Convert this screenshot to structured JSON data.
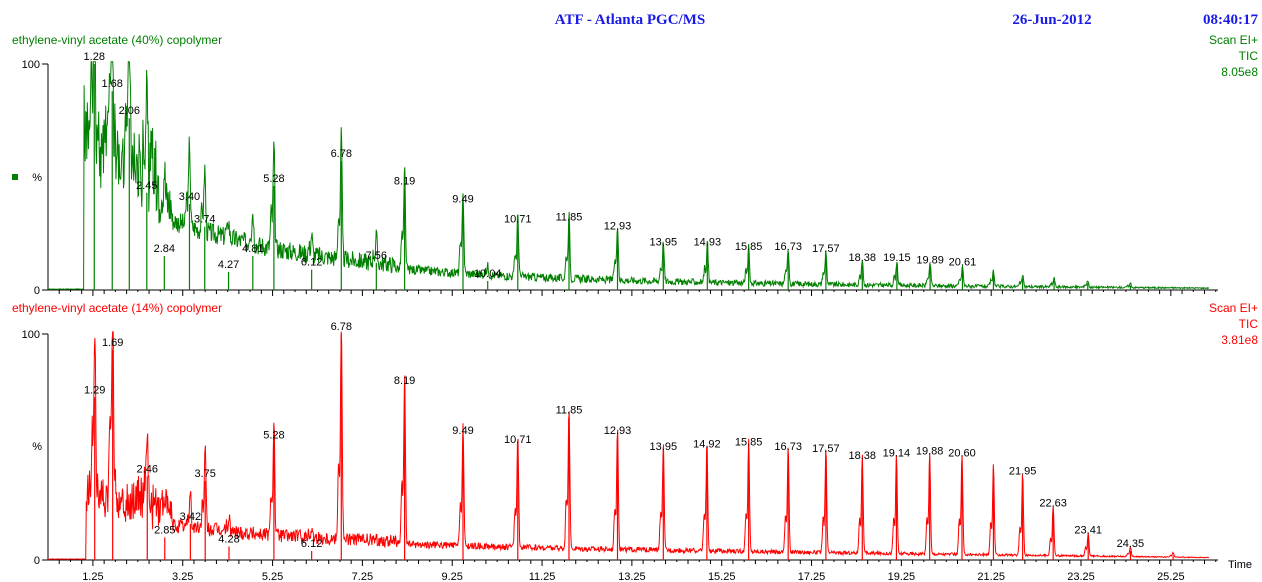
{
  "header": {
    "title": "ATF - Atlanta PGC/MS",
    "date": "26-Jun-2012",
    "time": "08:40:17",
    "color": "#1a1ae6"
  },
  "chart_data": [
    {
      "type": "line",
      "title": "ethylene-vinyl acetate (40%) copolymer",
      "scan_label": "Scan EI+",
      "detector": "TIC",
      "intensity": "8.05e8",
      "color": "#008000",
      "ylabel": "%",
      "ylim": [
        0,
        100
      ],
      "yticks": [
        "0",
        "100"
      ],
      "xlim": [
        0.25,
        26.3
      ],
      "grid": false,
      "peaks": [
        {
          "x": 1.28,
          "y": 100,
          "label": "1.28"
        },
        {
          "x": 1.68,
          "y": 88,
          "label": "1.68"
        },
        {
          "x": 2.06,
          "y": 76,
          "label": "2.06"
        },
        {
          "x": 2.45,
          "y": 43,
          "label": "2.45"
        },
        {
          "x": 2.84,
          "y": 15,
          "label": "2.84"
        },
        {
          "x": 3.4,
          "y": 38,
          "label": "3.40"
        },
        {
          "x": 3.74,
          "y": 28,
          "label": "3.74"
        },
        {
          "x": 4.27,
          "y": 8,
          "label": "4.27"
        },
        {
          "x": 4.81,
          "y": 15,
          "label": "4.81"
        },
        {
          "x": 5.28,
          "y": 46,
          "label": "5.28"
        },
        {
          "x": 6.12,
          "y": 9,
          "label": "6.12"
        },
        {
          "x": 6.78,
          "y": 57,
          "label": "6.78"
        },
        {
          "x": 7.56,
          "y": 12,
          "label": "7.56"
        },
        {
          "x": 8.19,
          "y": 45,
          "label": "8.19"
        },
        {
          "x": 9.49,
          "y": 37,
          "label": "9.49"
        },
        {
          "x": 10.04,
          "y": 4,
          "label": "10.04"
        },
        {
          "x": 10.71,
          "y": 28,
          "label": "10.71"
        },
        {
          "x": 11.85,
          "y": 29,
          "label": "11.85"
        },
        {
          "x": 12.93,
          "y": 25,
          "label": "12.93"
        },
        {
          "x": 13.95,
          "y": 18,
          "label": "13.95"
        },
        {
          "x": 14.93,
          "y": 18,
          "label": "14.93"
        },
        {
          "x": 15.85,
          "y": 16,
          "label": "15.85"
        },
        {
          "x": 16.73,
          "y": 16,
          "label": "16.73"
        },
        {
          "x": 17.57,
          "y": 15,
          "label": "17.57"
        },
        {
          "x": 18.38,
          "y": 11,
          "label": "18.38"
        },
        {
          "x": 19.15,
          "y": 11,
          "label": "19.15"
        },
        {
          "x": 19.89,
          "y": 10,
          "label": "19.89"
        },
        {
          "x": 20.61,
          "y": 9,
          "label": "20.61"
        },
        {
          "x": 21.3,
          "y": 7,
          "label": ""
        },
        {
          "x": 21.95,
          "y": 5,
          "label": ""
        },
        {
          "x": 22.65,
          "y": 4,
          "label": ""
        },
        {
          "x": 23.4,
          "y": 3,
          "label": ""
        },
        {
          "x": 24.35,
          "y": 2,
          "label": ""
        }
      ]
    },
    {
      "type": "line",
      "title": "ethylene-vinyl acetate (14%) copolymer",
      "scan_label": "Scan EI+",
      "detector": "TIC",
      "intensity": "3.81e8",
      "color": "#ff0000",
      "ylabel": "%",
      "ylim": [
        0,
        100
      ],
      "yticks": [
        "0",
        "100"
      ],
      "xlim": [
        0.25,
        26.3
      ],
      "xlabel": "Time",
      "xticks": [
        "1.25",
        "3.25",
        "5.25",
        "7.25",
        "9.25",
        "11.25",
        "13.25",
        "15.25",
        "17.25",
        "19.25",
        "21.25",
        "23.25",
        "25.25"
      ],
      "grid": false,
      "peaks": [
        {
          "x": 1.29,
          "y": 72,
          "label": "1.29"
        },
        {
          "x": 1.69,
          "y": 93,
          "label": "1.69"
        },
        {
          "x": 2.46,
          "y": 37,
          "label": "2.46"
        },
        {
          "x": 2.85,
          "y": 10,
          "label": "2.85"
        },
        {
          "x": 3.42,
          "y": 16,
          "label": "3.42"
        },
        {
          "x": 3.75,
          "y": 35,
          "label": "3.75"
        },
        {
          "x": 4.28,
          "y": 6,
          "label": "4.28"
        },
        {
          "x": 5.28,
          "y": 52,
          "label": "5.28"
        },
        {
          "x": 6.12,
          "y": 4,
          "label": "6.12"
        },
        {
          "x": 6.78,
          "y": 100,
          "label": "6.78"
        },
        {
          "x": 8.19,
          "y": 76,
          "label": "8.19"
        },
        {
          "x": 9.49,
          "y": 54,
          "label": "9.49"
        },
        {
          "x": 10.71,
          "y": 50,
          "label": "10.71"
        },
        {
          "x": 11.85,
          "y": 63,
          "label": "11.85"
        },
        {
          "x": 12.93,
          "y": 54,
          "label": "12.93"
        },
        {
          "x": 13.95,
          "y": 47,
          "label": "13.95"
        },
        {
          "x": 14.92,
          "y": 48,
          "label": "14.92"
        },
        {
          "x": 15.85,
          "y": 49,
          "label": "15.85"
        },
        {
          "x": 16.73,
          "y": 47,
          "label": "16.73"
        },
        {
          "x": 17.57,
          "y": 46,
          "label": "17.57"
        },
        {
          "x": 18.38,
          "y": 43,
          "label": "18.38"
        },
        {
          "x": 19.14,
          "y": 44,
          "label": "19.14"
        },
        {
          "x": 19.88,
          "y": 45,
          "label": "19.88"
        },
        {
          "x": 20.6,
          "y": 44,
          "label": "20.60"
        },
        {
          "x": 21.3,
          "y": 40,
          "label": ""
        },
        {
          "x": 21.95,
          "y": 36,
          "label": "21.95"
        },
        {
          "x": 22.63,
          "y": 22,
          "label": "22.63"
        },
        {
          "x": 23.41,
          "y": 10,
          "label": "23.41"
        },
        {
          "x": 24.35,
          "y": 4,
          "label": "24.35"
        },
        {
          "x": 25.3,
          "y": 2,
          "label": ""
        }
      ]
    }
  ]
}
